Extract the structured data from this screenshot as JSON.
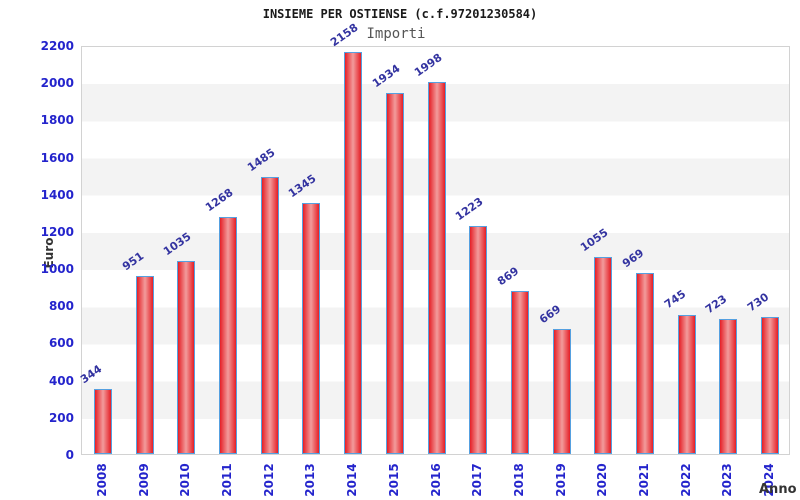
{
  "chart_data": {
    "type": "bar",
    "title": "INSIEME PER OSTIENSE (c.f.97201230584)",
    "subtitle": "Importi",
    "xlabel": "Anno",
    "ylabel": "Euro",
    "categories": [
      "2008",
      "2009",
      "2010",
      "2011",
      "2012",
      "2013",
      "2014",
      "2015",
      "2016",
      "2017",
      "2018",
      "2019",
      "2020",
      "2021",
      "2022",
      "2023",
      "2024"
    ],
    "values": [
      344,
      951,
      1035,
      1268,
      1485,
      1345,
      2158,
      1934,
      1998,
      1223,
      869,
      669,
      1055,
      969,
      745,
      723,
      730
    ],
    "ylim": [
      0,
      2200
    ],
    "ytick_step": 200,
    "yticks": [
      0,
      200,
      400,
      600,
      800,
      1000,
      1200,
      1400,
      1600,
      1800,
      2000,
      2200
    ],
    "value_labels_shown": true,
    "legend": "none",
    "grid": "alternating-horizontal-bands",
    "colors": {
      "bar_edge": "#e51f26",
      "bar_center": "#f29c9c",
      "bar_border": "#55a0e0",
      "axis_tick_text": "#2424cc",
      "value_label_text": "#3333a0",
      "band": "#f3f3f3",
      "plot_border": "#d2d2d2",
      "axis_title_text": "#333333",
      "title_text": "#1a1a1a",
      "subtitle_text": "#555555",
      "background": "#ffffff"
    }
  }
}
